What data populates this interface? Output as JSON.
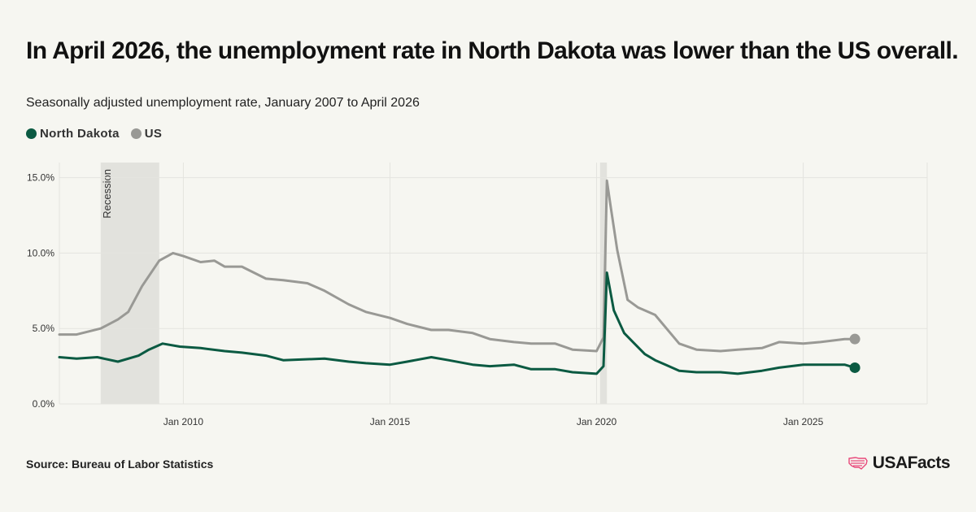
{
  "header": {
    "title": "In April 2026, the unemployment rate in North Dakota was lower than the US overall.",
    "subtitle": "Seasonally adjusted unemployment rate, January 2007 to April 2026"
  },
  "legend": [
    {
      "label": "North Dakota",
      "color": "#0b5a42"
    },
    {
      "label": "US",
      "color": "#999995"
    }
  ],
  "footer": {
    "source": "Source: Bureau of Labor Statistics",
    "brand": "USAFacts",
    "brand_icon": "us-flag-map-icon"
  },
  "colors": {
    "north_dakota": "#0b5a42",
    "us": "#999995",
    "recession_band": "#e2e2dd",
    "grid": "#e4e4df",
    "brand_accent": "#e8487a"
  },
  "chart_data": {
    "type": "line",
    "x_type": "date",
    "xlim": [
      "2007-01",
      "2028-01"
    ],
    "ylim": [
      0,
      16
    ],
    "y_ticks": [
      0,
      5,
      10,
      15
    ],
    "y_tick_labels": [
      "0.0%",
      "5.0%",
      "10.0%",
      "15.0%"
    ],
    "x_ticks": [
      "2010-01",
      "2015-01",
      "2020-01",
      "2025-01"
    ],
    "x_tick_labels": [
      "Jan 2010",
      "Jan 2015",
      "Jan 2020",
      "Jan 2025"
    ],
    "grid": true,
    "recessions": [
      {
        "start": "2008-01",
        "end": "2009-06",
        "label": "Recession"
      },
      {
        "start": "2020-02",
        "end": "2020-04",
        "label": ""
      }
    ],
    "series": [
      {
        "name": "North Dakota",
        "points": [
          [
            "2007-01",
            3.1
          ],
          [
            "2007-06",
            3.0
          ],
          [
            "2007-12",
            3.1
          ],
          [
            "2008-06",
            2.8
          ],
          [
            "2008-12",
            3.2
          ],
          [
            "2009-03",
            3.6
          ],
          [
            "2009-07",
            4.0
          ],
          [
            "2009-12",
            3.8
          ],
          [
            "2010-06",
            3.7
          ],
          [
            "2011-01",
            3.5
          ],
          [
            "2011-06",
            3.4
          ],
          [
            "2012-01",
            3.2
          ],
          [
            "2012-06",
            2.9
          ],
          [
            "2013-06",
            3.0
          ],
          [
            "2014-01",
            2.8
          ],
          [
            "2014-06",
            2.7
          ],
          [
            "2015-01",
            2.6
          ],
          [
            "2015-06",
            2.8
          ],
          [
            "2016-01",
            3.1
          ],
          [
            "2016-06",
            2.9
          ],
          [
            "2017-01",
            2.6
          ],
          [
            "2017-06",
            2.5
          ],
          [
            "2018-01",
            2.6
          ],
          [
            "2018-06",
            2.3
          ],
          [
            "2019-01",
            2.3
          ],
          [
            "2019-06",
            2.1
          ],
          [
            "2020-01",
            2.0
          ],
          [
            "2020-03",
            2.5
          ],
          [
            "2020-04",
            8.7
          ],
          [
            "2020-06",
            6.2
          ],
          [
            "2020-09",
            4.7
          ],
          [
            "2020-12",
            4.0
          ],
          [
            "2021-03",
            3.3
          ],
          [
            "2021-06",
            2.9
          ],
          [
            "2021-09",
            2.6
          ],
          [
            "2022-01",
            2.2
          ],
          [
            "2022-06",
            2.1
          ],
          [
            "2023-01",
            2.1
          ],
          [
            "2023-06",
            2.0
          ],
          [
            "2024-01",
            2.2
          ],
          [
            "2024-06",
            2.4
          ],
          [
            "2025-01",
            2.6
          ],
          [
            "2025-06",
            2.6
          ],
          [
            "2026-01",
            2.6
          ],
          [
            "2026-04",
            2.4
          ]
        ]
      },
      {
        "name": "US",
        "points": [
          [
            "2007-01",
            4.6
          ],
          [
            "2007-06",
            4.6
          ],
          [
            "2008-01",
            5.0
          ],
          [
            "2008-06",
            5.6
          ],
          [
            "2008-09",
            6.1
          ],
          [
            "2009-01",
            7.8
          ],
          [
            "2009-06",
            9.5
          ],
          [
            "2009-10",
            10.0
          ],
          [
            "2010-01",
            9.8
          ],
          [
            "2010-06",
            9.4
          ],
          [
            "2010-10",
            9.5
          ],
          [
            "2011-01",
            9.1
          ],
          [
            "2011-06",
            9.1
          ],
          [
            "2012-01",
            8.3
          ],
          [
            "2012-06",
            8.2
          ],
          [
            "2013-01",
            8.0
          ],
          [
            "2013-06",
            7.5
          ],
          [
            "2014-01",
            6.6
          ],
          [
            "2014-06",
            6.1
          ],
          [
            "2015-01",
            5.7
          ],
          [
            "2015-06",
            5.3
          ],
          [
            "2016-01",
            4.9
          ],
          [
            "2016-06",
            4.9
          ],
          [
            "2017-01",
            4.7
          ],
          [
            "2017-06",
            4.3
          ],
          [
            "2018-01",
            4.1
          ],
          [
            "2018-06",
            4.0
          ],
          [
            "2019-01",
            4.0
          ],
          [
            "2019-06",
            3.6
          ],
          [
            "2020-01",
            3.5
          ],
          [
            "2020-03",
            4.4
          ],
          [
            "2020-04",
            14.8
          ],
          [
            "2020-05",
            13.2
          ],
          [
            "2020-07",
            10.2
          ],
          [
            "2020-10",
            6.9
          ],
          [
            "2021-01",
            6.4
          ],
          [
            "2021-06",
            5.9
          ],
          [
            "2022-01",
            4.0
          ],
          [
            "2022-06",
            3.6
          ],
          [
            "2023-01",
            3.5
          ],
          [
            "2023-06",
            3.6
          ],
          [
            "2024-01",
            3.7
          ],
          [
            "2024-06",
            4.1
          ],
          [
            "2025-01",
            4.0
          ],
          [
            "2025-06",
            4.1
          ],
          [
            "2026-01",
            4.3
          ],
          [
            "2026-04",
            4.3
          ]
        ]
      }
    ]
  }
}
